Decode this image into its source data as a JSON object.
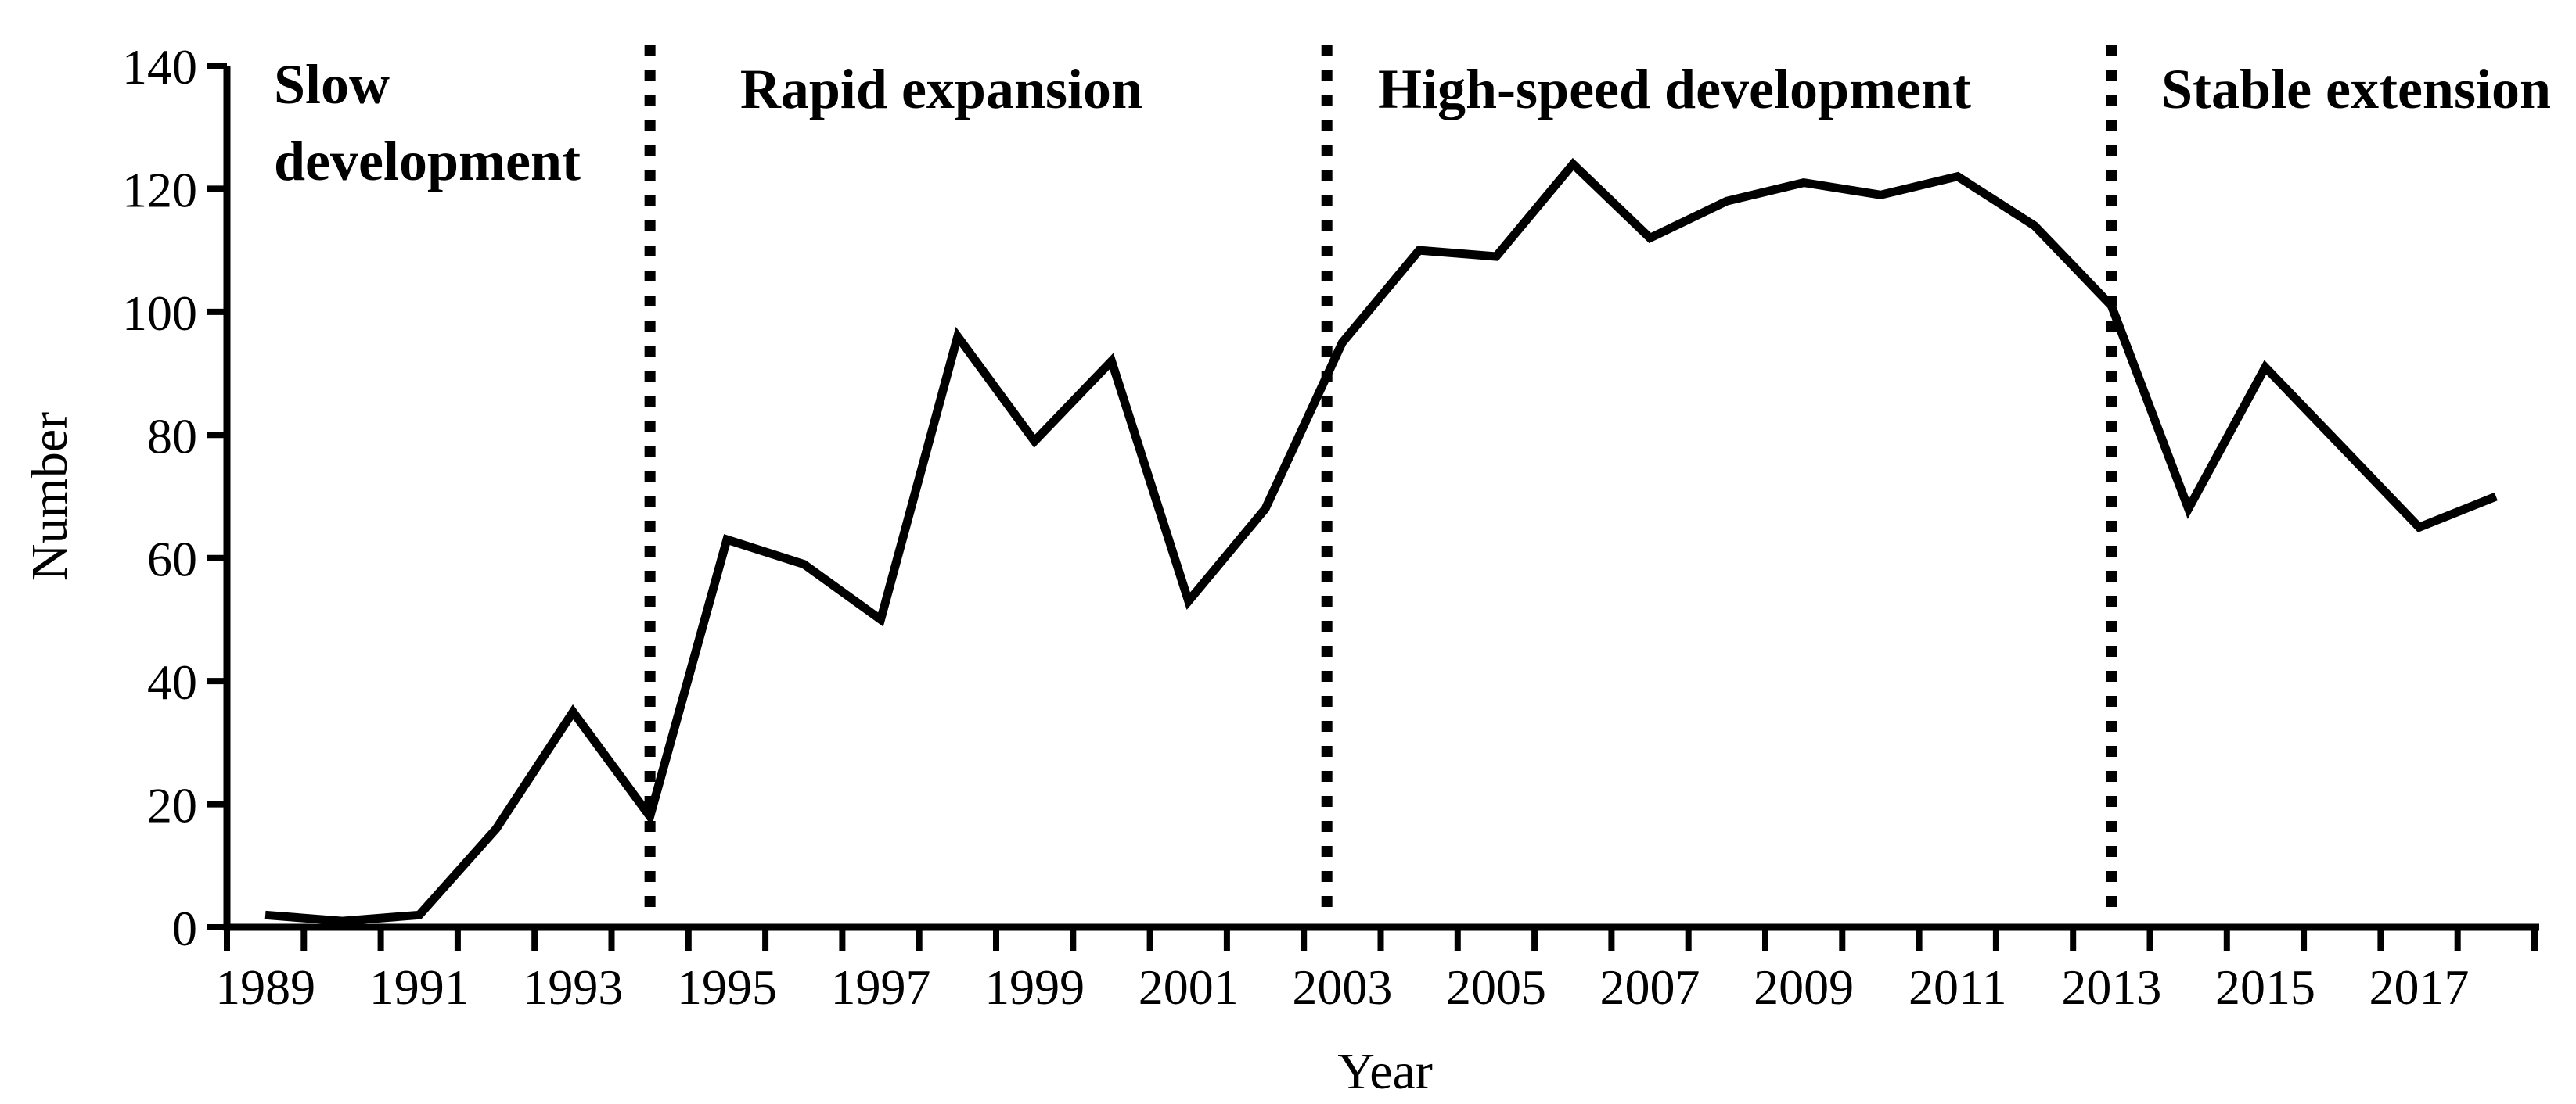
{
  "figure": {
    "background_color": "#ffffff",
    "ink_color": "#000000"
  },
  "chart_data": {
    "type": "line",
    "title": "",
    "xlabel": "Year",
    "ylabel": "Number",
    "x": [
      1989,
      1990,
      1991,
      1992,
      1993,
      1994,
      1995,
      1996,
      1997,
      1998,
      1999,
      2000,
      2001,
      2002,
      2003,
      2004,
      2005,
      2006,
      2007,
      2008,
      2009,
      2010,
      2011,
      2012,
      2013,
      2014,
      2015,
      2016,
      2017,
      2018
    ],
    "values": [
      2,
      1,
      2,
      16,
      35,
      18,
      63,
      59,
      50,
      96,
      79,
      92,
      53,
      68,
      95,
      110,
      109,
      124,
      112,
      118,
      121,
      119,
      122,
      114,
      101,
      68,
      91,
      78,
      65,
      70
    ],
    "ylim": [
      0,
      140
    ],
    "ytick_step": 20,
    "ytick_values": [
      0,
      20,
      40,
      60,
      80,
      100,
      120,
      140
    ],
    "ytick_labels": [
      "0",
      "20",
      "40",
      "60",
      "80",
      "100",
      "120",
      "140"
    ],
    "xtick_years": [
      1989,
      1991,
      1993,
      1995,
      1997,
      1999,
      2001,
      2003,
      2005,
      2007,
      2009,
      2011,
      2013,
      2015,
      2017
    ],
    "xtick_labels": [
      "1989",
      "1991",
      "1993",
      "1995",
      "1997",
      "1999",
      "2001",
      "2003",
      "2005",
      "2007",
      "2009",
      "2011",
      "2013",
      "2015",
      "2017"
    ],
    "grid": "off",
    "legend": "none",
    "line_color": "#000000",
    "separator_style": "dotted",
    "phase_separator_years": [
      1994,
      2002.8,
      2013
    ],
    "phases": [
      {
        "label": "Slow development",
        "lines": [
          "Slow",
          "development"
        ]
      },
      {
        "label": "Rapid expansion"
      },
      {
        "label": "High-speed development"
      },
      {
        "label": "Stable extension"
      }
    ]
  }
}
